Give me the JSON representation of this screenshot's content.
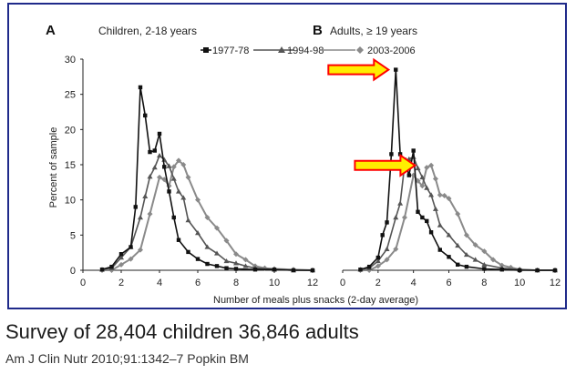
{
  "caption": "Survey of 28,404 children 36,846 adults",
  "citation": "Am J Clin Nutr 2010;91:1342–7 Popkin BM",
  "legend": [
    "1977-78",
    "1994-98",
    "2003-2006"
  ],
  "xlabel": "Number of meals plus snacks (2-day average)",
  "ylabel": "Percent of sample",
  "chart_data": [
    {
      "type": "line",
      "panel": "A",
      "title": "Children, 2-18 years",
      "xlim": [
        0,
        12
      ],
      "ylim": [
        0,
        30
      ],
      "xticks": [
        0,
        2,
        4,
        6,
        8,
        10,
        12
      ],
      "yticks": [
        0,
        5,
        10,
        15,
        20,
        25,
        30
      ],
      "series": [
        {
          "name": "1977-78",
          "color": "#111111",
          "marker": "square",
          "x": [
            1,
            1.5,
            2,
            2.5,
            2.75,
            3,
            3.25,
            3.5,
            3.75,
            4,
            4.25,
            4.5,
            4.75,
            5,
            5.5,
            6,
            6.5,
            7,
            7.5,
            8,
            9,
            10,
            11,
            12
          ],
          "y": [
            0.1,
            0.5,
            2.3,
            3.3,
            9,
            26,
            22,
            16.8,
            17,
            19.4,
            14.7,
            11.2,
            7.5,
            4.3,
            2.6,
            1.6,
            0.9,
            0.6,
            0.3,
            0.2,
            0.1,
            0.1,
            0,
            0
          ]
        },
        {
          "name": "1994-98",
          "color": "#555555",
          "marker": "triangle",
          "x": [
            1,
            1.5,
            2,
            2.5,
            3,
            3.25,
            3.5,
            3.75,
            4,
            4.25,
            4.5,
            4.75,
            5,
            5.25,
            5.5,
            6,
            6.5,
            7,
            7.5,
            8,
            8.5,
            9,
            10,
            11,
            12
          ],
          "y": [
            0.1,
            0.3,
            1.8,
            3.3,
            7.5,
            10.5,
            13.3,
            14.6,
            16.3,
            15.7,
            14.8,
            13,
            11.2,
            10.3,
            7.1,
            5.3,
            3.3,
            2.4,
            1.3,
            1,
            0.6,
            0.3,
            0.1,
            0,
            0
          ]
        },
        {
          "name": "2003-2006",
          "color": "#8a8a8a",
          "marker": "diamond",
          "x": [
            1,
            1.5,
            2,
            2.5,
            3,
            3.5,
            4,
            4.25,
            4.5,
            4.75,
            5,
            5.25,
            5.5,
            6,
            6.5,
            7,
            7.5,
            8,
            8.5,
            9,
            9.5,
            10,
            11,
            12
          ],
          "y": [
            0,
            0,
            0.8,
            1.6,
            2.9,
            8,
            13.2,
            12.9,
            12,
            14.7,
            15.6,
            15,
            13.2,
            10,
            7.5,
            6,
            4.2,
            2.3,
            1.5,
            0.6,
            0.3,
            0.2,
            0.1,
            0
          ]
        }
      ]
    },
    {
      "type": "line",
      "panel": "B",
      "title": "Adults, ≥ 19 years",
      "xlim": [
        0,
        12
      ],
      "ylim": [
        0,
        30
      ],
      "xticks": [
        0,
        2,
        4,
        6,
        8,
        10,
        12
      ],
      "yticks": [],
      "series": [
        {
          "name": "1977-78",
          "color": "#111111",
          "marker": "square",
          "x": [
            1,
            1.5,
            2,
            2.25,
            2.5,
            2.75,
            3,
            3.25,
            3.5,
            3.75,
            4,
            4.25,
            4.5,
            4.75,
            5,
            5.5,
            6,
            6.5,
            7,
            8,
            9,
            10,
            11,
            12
          ],
          "y": [
            0.1,
            0.5,
            1.8,
            5,
            6.8,
            16.5,
            28.5,
            16.5,
            15.7,
            13.5,
            17,
            8.3,
            7.5,
            7,
            5.4,
            2.9,
            1.9,
            0.8,
            0.5,
            0.2,
            0.1,
            0,
            0,
            0
          ]
        },
        {
          "name": "1994-98",
          "color": "#555555",
          "marker": "triangle",
          "x": [
            1,
            1.5,
            2,
            2.5,
            3,
            3.25,
            3.5,
            3.75,
            4,
            4.25,
            4.5,
            4.75,
            5,
            5.25,
            5.5,
            6,
            6.5,
            7,
            7.5,
            8,
            9,
            10,
            11,
            12
          ],
          "y": [
            0.1,
            0.3,
            1.3,
            3,
            7.5,
            9.5,
            15,
            15.8,
            16.1,
            14.5,
            13.2,
            11.7,
            10.7,
            8.7,
            6.4,
            5,
            3.5,
            2.2,
            1.5,
            0.8,
            0.3,
            0.1,
            0,
            0
          ]
        },
        {
          "name": "2003-2006",
          "color": "#8a8a8a",
          "marker": "diamond",
          "x": [
            1,
            1.5,
            2,
            2.5,
            3,
            3.5,
            4,
            4.25,
            4.5,
            4.75,
            5,
            5.25,
            5.5,
            5.75,
            6,
            6.5,
            7,
            7.5,
            8,
            8.5,
            9,
            9.5,
            10,
            11,
            12
          ],
          "y": [
            0,
            0,
            0.6,
            1.5,
            3,
            7.5,
            13.5,
            12.7,
            12,
            14.6,
            14.9,
            13,
            10.7,
            10.6,
            10.2,
            8,
            5,
            3.6,
            2.7,
            1.5,
            0.7,
            0.4,
            0.1,
            0,
            0
          ]
        }
      ],
      "annotations": [
        {
          "type": "arrow",
          "color": "#ff0000",
          "fill": "#ffee00",
          "points_to": {
            "x": 3,
            "y": 28.5
          }
        },
        {
          "type": "arrow",
          "color": "#ff0000",
          "fill": "#ffee00",
          "points_to": {
            "x": 4.5,
            "y": 14.9
          }
        }
      ]
    }
  ]
}
